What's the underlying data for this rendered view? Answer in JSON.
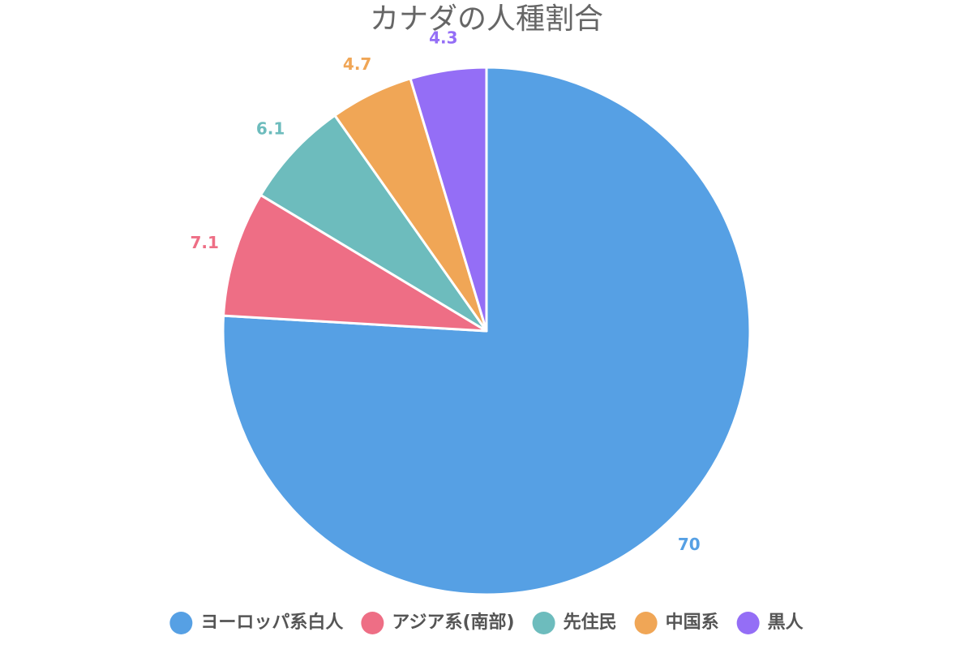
{
  "chart_data": {
    "type": "pie",
    "title": "カナダの人種割合",
    "categories": [
      "ヨーロッパ系白人",
      "アジア系(南部)",
      "先住民",
      "中国系",
      "黒人"
    ],
    "values": [
      70,
      7.1,
      6.1,
      4.7,
      4.3
    ],
    "labels": [
      "70",
      "7.1",
      "6.1",
      "4.7",
      "4.3"
    ],
    "colors": [
      "#56a0e4",
      "#ee6e85",
      "#6dbcbd",
      "#f0a656",
      "#946ef6"
    ],
    "legend_position": "bottom"
  }
}
